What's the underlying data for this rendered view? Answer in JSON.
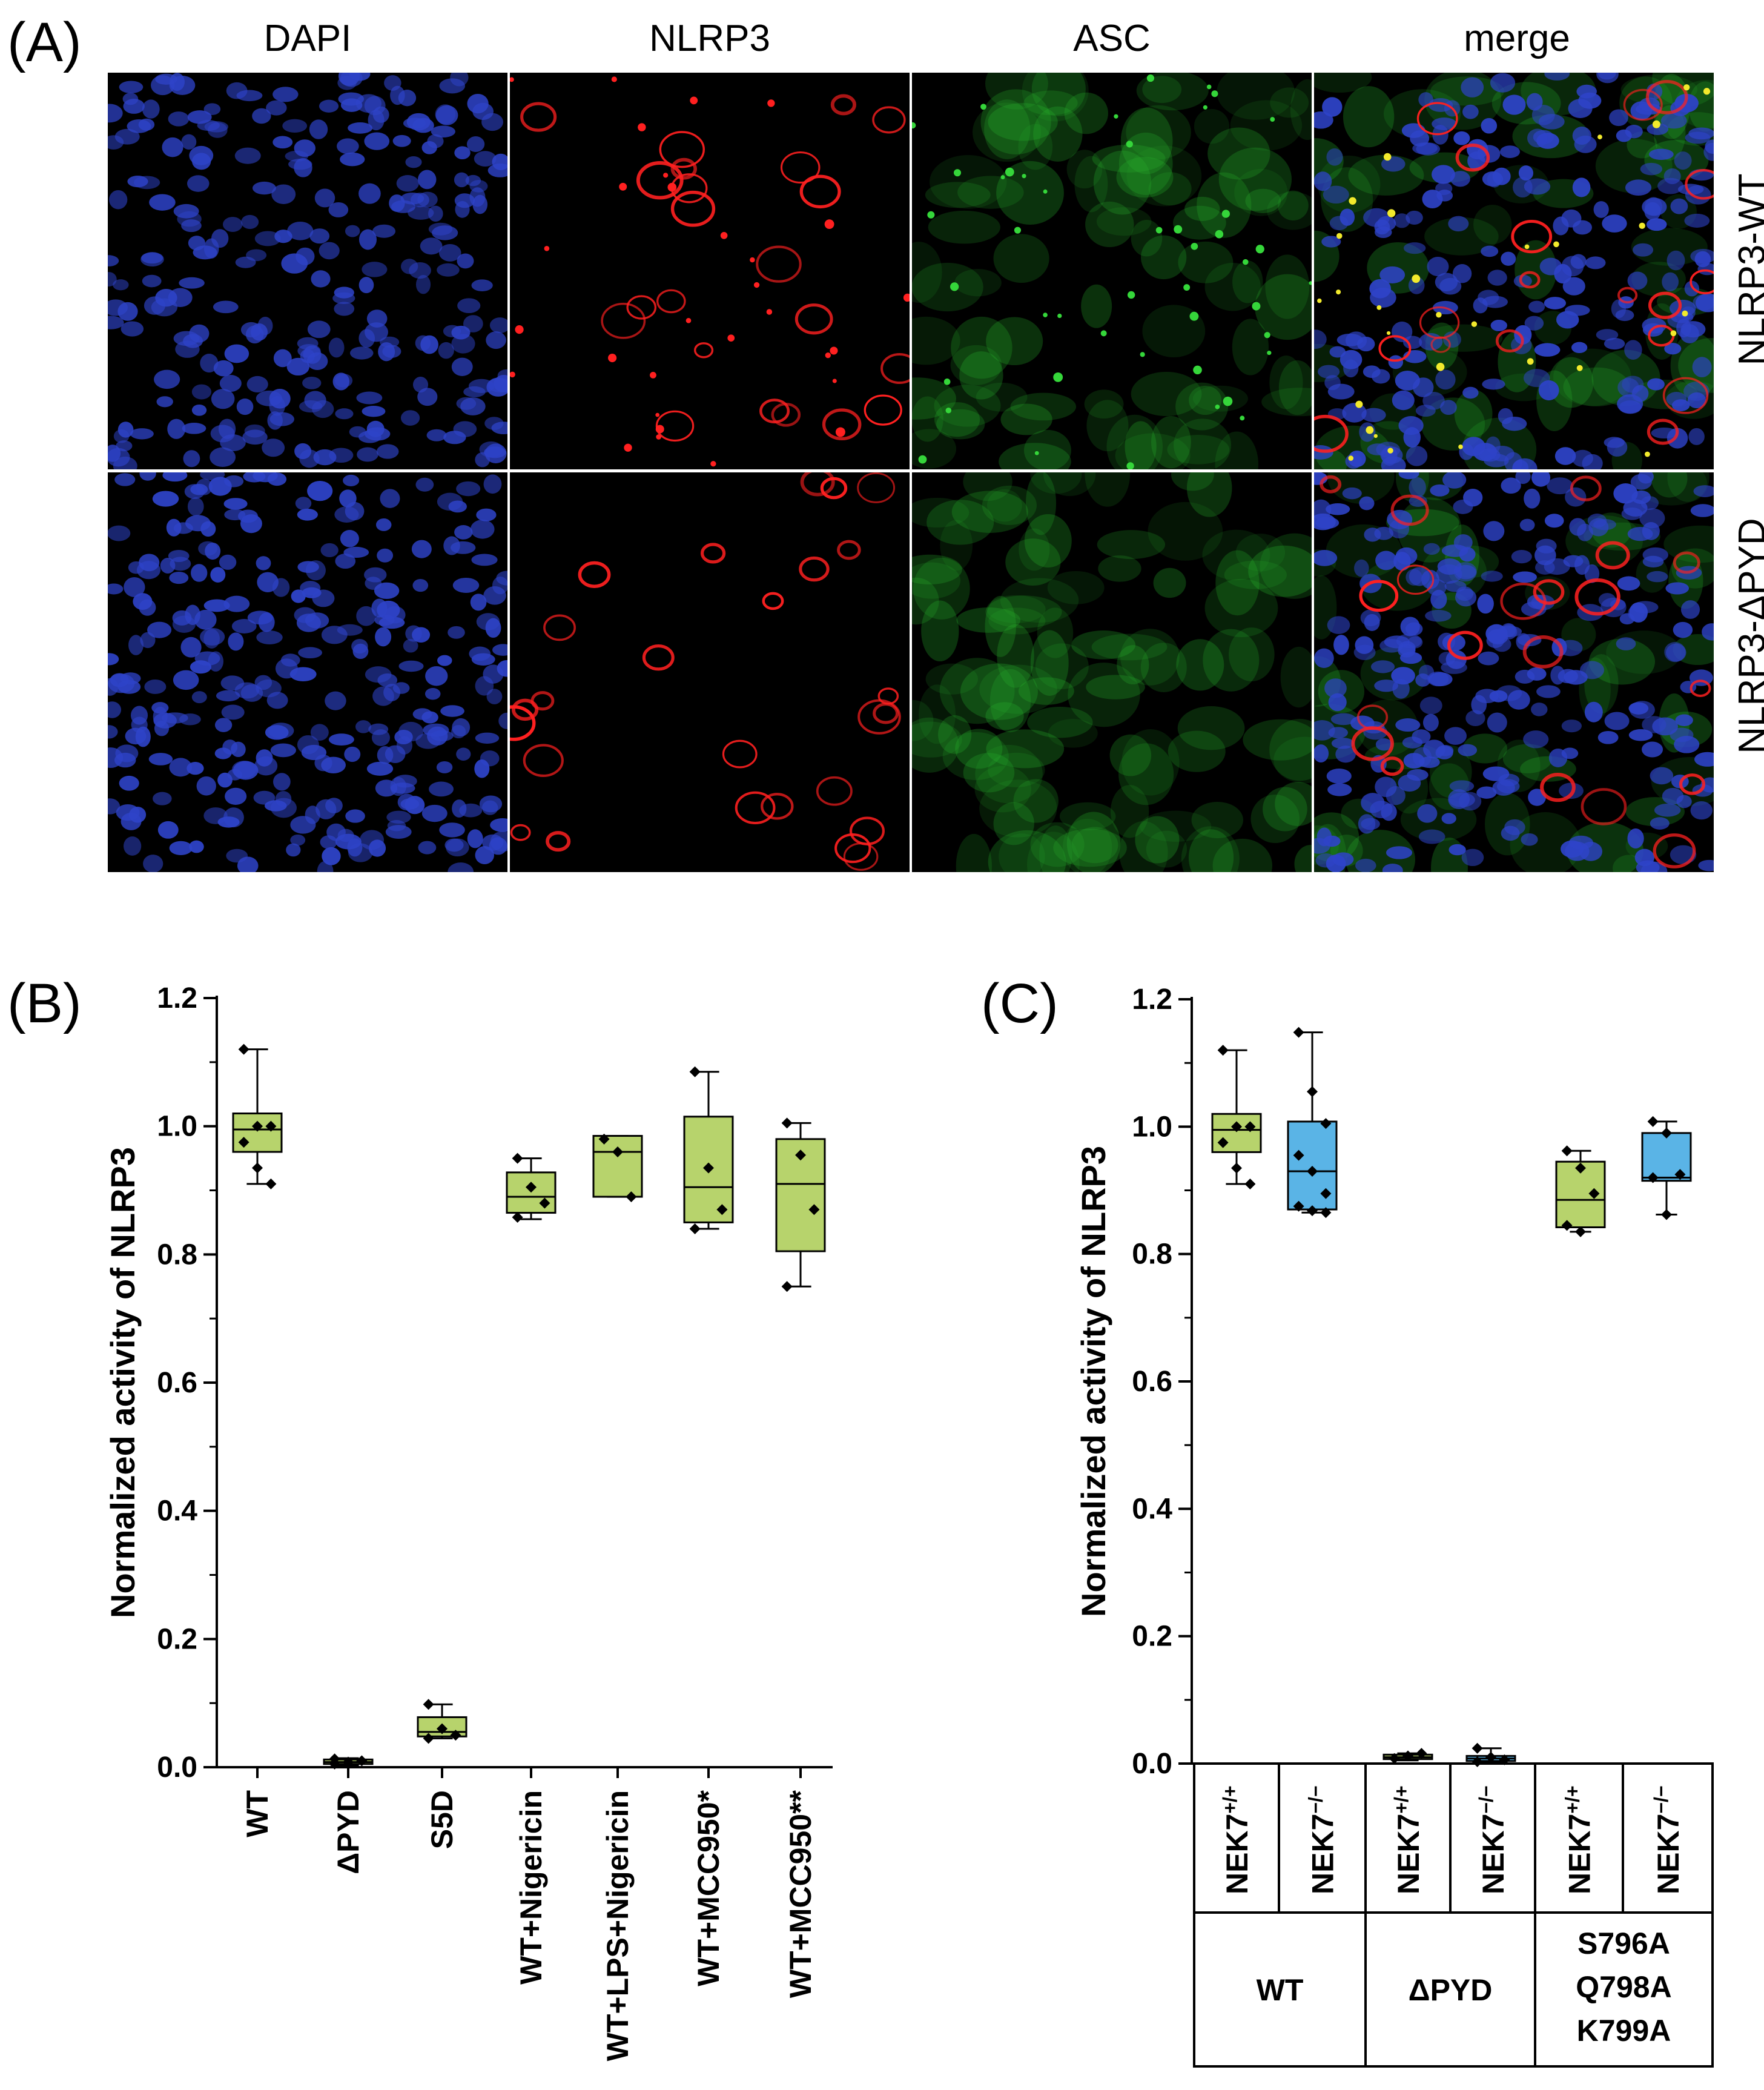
{
  "panel_a": {
    "letter": "(A)",
    "columns": [
      "DAPI",
      "NLRP3",
      "ASC",
      "merge"
    ],
    "rows": [
      "NLRP3-WT",
      "NLRP3-ΔPYD"
    ]
  },
  "panel_b": {
    "letter": "(B)"
  },
  "panel_c": {
    "letter": "(C)"
  },
  "colors": {
    "green_box": "#b7d36c",
    "blue_box": "#5ab4e6",
    "dapi": "#2e43c8",
    "nlrp3": "#ff2020",
    "asc": "#27b02c"
  },
  "chart_data": [
    {
      "type": "box",
      "ylabel": "Normalized activity of NLRP3",
      "ylim": [
        0,
        1.2
      ],
      "yticks": [
        "0.0",
        "0.2",
        "0.4",
        "0.6",
        "0.8",
        "1.0",
        "1.2"
      ],
      "categories": [
        "WT",
        "ΔPYD",
        "S5D",
        "WT+Nigericin",
        "WT+LPS+Nigericin",
        "WT+MCC950*",
        "WT+MCC950**"
      ],
      "boxes": [
        {
          "min": 0.91,
          "q1": 0.96,
          "median": 0.995,
          "q3": 1.02,
          "max": 1.12,
          "points": [
            1.12,
            1.0,
            1.0,
            0.975,
            0.935,
            0.91
          ],
          "color": "green"
        },
        {
          "min": 0.003,
          "q1": 0.005,
          "median": 0.008,
          "q3": 0.012,
          "max": 0.014,
          "points": [
            0.005,
            0.008,
            0.01,
            0.013
          ],
          "color": "green"
        },
        {
          "min": 0.045,
          "q1": 0.048,
          "median": 0.055,
          "q3": 0.078,
          "max": 0.098,
          "points": [
            0.098,
            0.06,
            0.05,
            0.045
          ],
          "color": "green"
        },
        {
          "min": 0.855,
          "q1": 0.865,
          "median": 0.89,
          "q3": 0.928,
          "max": 0.95,
          "points": [
            0.95,
            0.905,
            0.88,
            0.858
          ],
          "color": "green"
        },
        {
          "min": 0.89,
          "q1": 0.89,
          "median": 0.96,
          "q3": 0.985,
          "max": 0.985,
          "points": [
            0.98,
            0.96,
            0.89
          ],
          "color": "green"
        },
        {
          "min": 0.84,
          "q1": 0.85,
          "median": 0.905,
          "q3": 1.015,
          "max": 1.085,
          "points": [
            1.085,
            0.935,
            0.87,
            0.84
          ],
          "color": "green"
        },
        {
          "min": 0.75,
          "q1": 0.805,
          "median": 0.91,
          "q3": 0.98,
          "max": 1.005,
          "points": [
            1.005,
            0.955,
            0.87,
            0.75
          ],
          "color": "green"
        }
      ]
    },
    {
      "type": "box",
      "ylabel": "Normalized activity of NLRP3",
      "ylim": [
        0,
        1.2
      ],
      "yticks": [
        "0.0",
        "0.2",
        "0.4",
        "0.6",
        "0.8",
        "1.0",
        "1.2"
      ],
      "genotype_labels": [
        "NEK7",
        "NEK7",
        "NEK7",
        "NEK7",
        "NEK7",
        "NEK7"
      ],
      "genotype_sups": [
        "+/+",
        "−/−",
        "+/+",
        "−/−",
        "+/+",
        "−/−"
      ],
      "groups": [
        "WT",
        "ΔPYD",
        "S796A Q798A K799A"
      ],
      "boxes": [
        {
          "min": 0.91,
          "q1": 0.96,
          "median": 0.995,
          "q3": 1.02,
          "max": 1.12,
          "points": [
            1.12,
            1.0,
            1.0,
            0.975,
            0.935,
            0.91
          ],
          "color": "green"
        },
        {
          "min": 0.865,
          "q1": 0.87,
          "median": 0.93,
          "q3": 1.008,
          "max": 1.148,
          "points": [
            1.148,
            1.055,
            1.005,
            0.955,
            0.93,
            0.895,
            0.875,
            0.868,
            0.865
          ],
          "color": "blue"
        },
        {
          "min": 0.005,
          "q1": 0.007,
          "median": 0.01,
          "q3": 0.014,
          "max": 0.016,
          "points": [
            0.008,
            0.012,
            0.016
          ],
          "color": "green"
        },
        {
          "min": 0.002,
          "q1": 0.004,
          "median": 0.008,
          "q3": 0.012,
          "max": 0.024,
          "points": [
            0.024,
            0.01,
            0.006,
            0.003
          ],
          "color": "blue"
        },
        {
          "min": 0.835,
          "q1": 0.842,
          "median": 0.885,
          "q3": 0.945,
          "max": 0.962,
          "points": [
            0.962,
            0.935,
            0.895,
            0.845,
            0.835
          ],
          "color": "green"
        },
        {
          "min": 0.862,
          "q1": 0.915,
          "median": 0.92,
          "q3": 0.99,
          "max": 1.008,
          "points": [
            1.008,
            0.99,
            0.925,
            0.92,
            0.862
          ],
          "color": "blue"
        }
      ]
    }
  ]
}
